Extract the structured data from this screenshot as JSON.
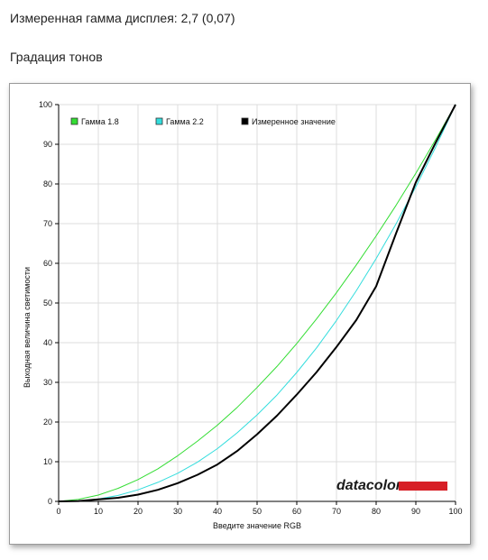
{
  "header": {
    "measured_gamma": "Измеренная гамма дисплея: 2,7 (0,07)",
    "section_title": "Градация тонов"
  },
  "brand": {
    "logo_text": "datacolor",
    "bar_color": "#d71f26"
  },
  "chart_data": {
    "type": "line",
    "xlabel": "Введите значение RGB",
    "ylabel": "Выходная величина светимости",
    "xlim": [
      0,
      100
    ],
    "ylim": [
      0,
      100
    ],
    "xticks": [
      0,
      10,
      20,
      30,
      40,
      50,
      60,
      70,
      80,
      90,
      100
    ],
    "yticks": [
      0,
      10,
      20,
      30,
      40,
      50,
      60,
      70,
      80,
      90,
      100
    ],
    "grid": true,
    "legend_position": "top-left",
    "series": [
      {
        "name": "Гамма 1.8",
        "color": "#33dd33",
        "width": 1,
        "x": [
          0,
          5,
          10,
          15,
          20,
          25,
          30,
          35,
          40,
          45,
          50,
          55,
          60,
          65,
          70,
          75,
          80,
          85,
          90,
          95,
          100
        ],
        "y": [
          0,
          0.5,
          1.6,
          3.3,
          5.5,
          8.2,
          11.5,
          15.2,
          19.2,
          23.7,
          28.7,
          34.0,
          39.8,
          46.0,
          52.6,
          59.6,
          66.9,
          74.6,
          82.7,
          91.2,
          100
        ]
      },
      {
        "name": "Гамма 2.2",
        "color": "#33dddd",
        "width": 1,
        "x": [
          0,
          5,
          10,
          15,
          20,
          25,
          30,
          35,
          40,
          45,
          50,
          55,
          60,
          65,
          70,
          75,
          80,
          85,
          90,
          95,
          100
        ],
        "y": [
          0,
          0.1,
          0.6,
          1.5,
          2.9,
          4.8,
          7.1,
          9.9,
          13.3,
          17.3,
          21.8,
          26.8,
          32.5,
          38.7,
          45.6,
          53.1,
          61.2,
          69.9,
          79.3,
          89.3,
          100
        ]
      },
      {
        "name": "Измеренное значение",
        "color": "#000000",
        "width": 2,
        "x": [
          0,
          5,
          10,
          15,
          20,
          25,
          30,
          35,
          40,
          45,
          50,
          55,
          60,
          65,
          70,
          75,
          80,
          85,
          90,
          95,
          100
        ],
        "y": [
          0,
          0.1,
          0.5,
          0.9,
          1.7,
          2.9,
          4.6,
          6.7,
          9.3,
          12.7,
          16.9,
          21.6,
          26.9,
          32.6,
          38.9,
          45.7,
          54.2,
          67.5,
          80.4,
          90.4,
          100
        ]
      }
    ]
  }
}
